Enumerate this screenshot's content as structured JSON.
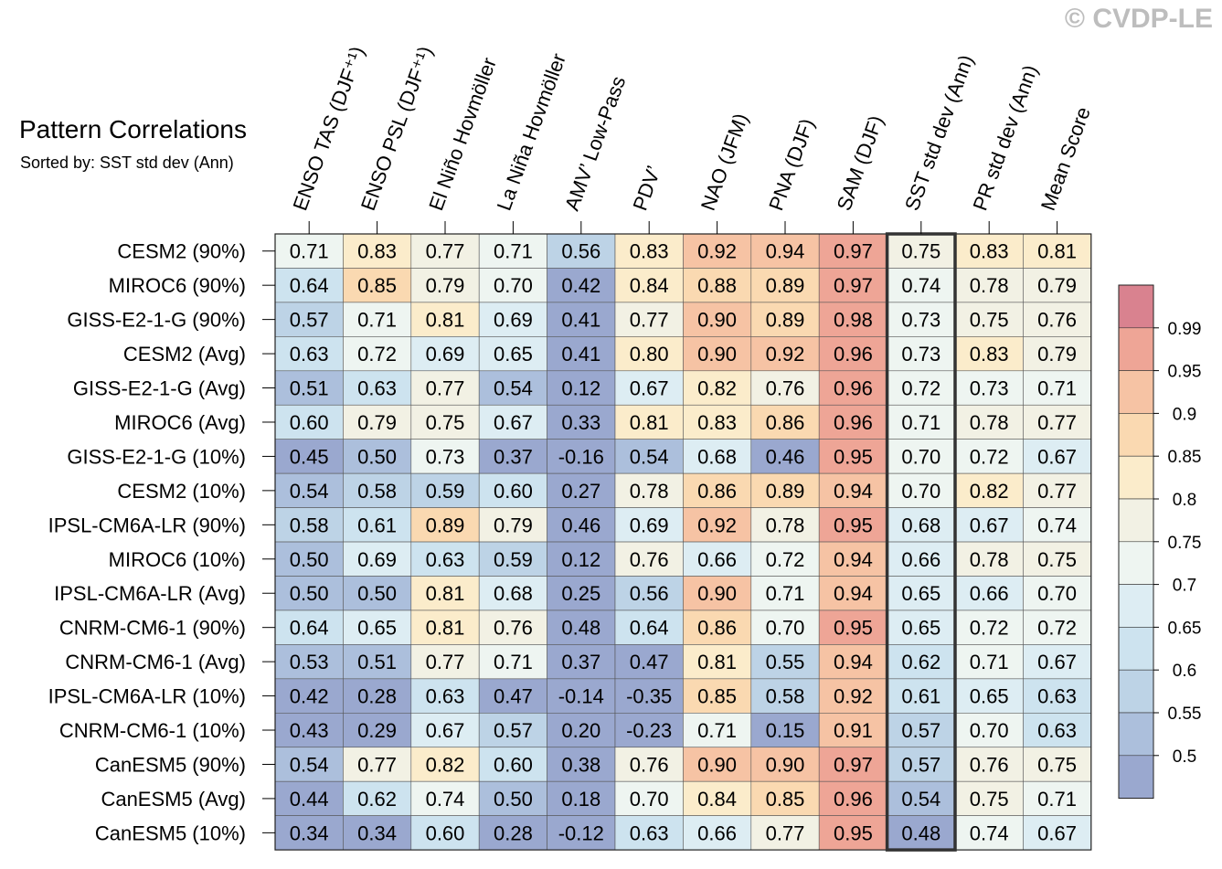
{
  "watermark": "© CVDP-LE",
  "chart_data": {
    "type": "heatmap",
    "title": "Pattern Correlations",
    "subtitle": "Sorted by: SST std dev (Ann)",
    "columns": [
      "ENSO TAS (DJF⁺¹)",
      "ENSO PSL (DJF⁺¹)",
      "El Niño Hovmöller",
      "La Niña Hovmöller",
      "AMV’ Low-Pass",
      "PDV’",
      "NAO (JFM)",
      "PNA (DJF)",
      "SAM (DJF)",
      "SST std dev (Ann)",
      "PR std dev (Ann)",
      "Mean Score"
    ],
    "rows": [
      "CESM2 (90%)",
      "MIROC6 (90%)",
      "GISS-E2-1-G (90%)",
      "CESM2 (Avg)",
      "GISS-E2-1-G (Avg)",
      "MIROC6 (Avg)",
      "GISS-E2-1-G (10%)",
      "CESM2 (10%)",
      "IPSL-CM6A-LR (90%)",
      "MIROC6 (10%)",
      "IPSL-CM6A-LR (Avg)",
      "CNRM-CM6-1 (90%)",
      "CNRM-CM6-1 (Avg)",
      "IPSL-CM6A-LR (10%)",
      "CNRM-CM6-1 (10%)",
      "CanESM5 (90%)",
      "CanESM5 (Avg)",
      "CanESM5 (10%)"
    ],
    "values": [
      [
        "0.71",
        "0.83",
        "0.77",
        "0.71",
        "0.56",
        "0.83",
        "0.92",
        "0.94",
        "0.97",
        "0.75",
        "0.83",
        "0.81"
      ],
      [
        "0.64",
        "0.85",
        "0.79",
        "0.70",
        "0.42",
        "0.84",
        "0.88",
        "0.89",
        "0.97",
        "0.74",
        "0.78",
        "0.79"
      ],
      [
        "0.57",
        "0.71",
        "0.81",
        "0.69",
        "0.41",
        "0.77",
        "0.90",
        "0.89",
        "0.98",
        "0.73",
        "0.75",
        "0.76"
      ],
      [
        "0.63",
        "0.72",
        "0.69",
        "0.65",
        "0.41",
        "0.80",
        "0.90",
        "0.92",
        "0.96",
        "0.73",
        "0.83",
        "0.79"
      ],
      [
        "0.51",
        "0.63",
        "0.77",
        "0.54",
        "0.12",
        "0.67",
        "0.82",
        "0.76",
        "0.96",
        "0.72",
        "0.73",
        "0.71"
      ],
      [
        "0.60",
        "0.79",
        "0.75",
        "0.67",
        "0.33",
        "0.81",
        "0.83",
        "0.86",
        "0.96",
        "0.71",
        "0.78",
        "0.77"
      ],
      [
        "0.45",
        "0.50",
        "0.73",
        "0.37",
        "-0.16",
        "0.54",
        "0.68",
        "0.46",
        "0.95",
        "0.70",
        "0.72",
        "0.67"
      ],
      [
        "0.54",
        "0.58",
        "0.59",
        "0.60",
        "0.27",
        "0.78",
        "0.86",
        "0.89",
        "0.94",
        "0.70",
        "0.82",
        "0.77"
      ],
      [
        "0.58",
        "0.61",
        "0.89",
        "0.79",
        "0.46",
        "0.69",
        "0.92",
        "0.78",
        "0.95",
        "0.68",
        "0.67",
        "0.74"
      ],
      [
        "0.50",
        "0.69",
        "0.63",
        "0.59",
        "0.12",
        "0.76",
        "0.66",
        "0.72",
        "0.94",
        "0.66",
        "0.78",
        "0.75"
      ],
      [
        "0.50",
        "0.50",
        "0.81",
        "0.68",
        "0.25",
        "0.56",
        "0.90",
        "0.71",
        "0.94",
        "0.65",
        "0.66",
        "0.70"
      ],
      [
        "0.64",
        "0.65",
        "0.81",
        "0.76",
        "0.48",
        "0.64",
        "0.86",
        "0.70",
        "0.95",
        "0.65",
        "0.72",
        "0.72"
      ],
      [
        "0.53",
        "0.51",
        "0.77",
        "0.71",
        "0.37",
        "0.47",
        "0.81",
        "0.55",
        "0.94",
        "0.62",
        "0.71",
        "0.67"
      ],
      [
        "0.42",
        "0.28",
        "0.63",
        "0.47",
        "-0.14",
        "-0.35",
        "0.85",
        "0.58",
        "0.92",
        "0.61",
        "0.65",
        "0.63"
      ],
      [
        "0.43",
        "0.29",
        "0.67",
        "0.57",
        "0.20",
        "-0.23",
        "0.71",
        "0.15",
        "0.91",
        "0.57",
        "0.70",
        "0.63"
      ],
      [
        "0.54",
        "0.77",
        "0.82",
        "0.60",
        "0.38",
        "0.76",
        "0.90",
        "0.90",
        "0.97",
        "0.57",
        "0.76",
        "0.75"
      ],
      [
        "0.44",
        "0.62",
        "0.74",
        "0.50",
        "0.18",
        "0.70",
        "0.84",
        "0.85",
        "0.96",
        "0.54",
        "0.75",
        "0.71"
      ],
      [
        "0.34",
        "0.34",
        "0.60",
        "0.28",
        "-0.12",
        "0.63",
        "0.66",
        "0.77",
        "0.95",
        "0.48",
        "0.74",
        "0.67"
      ]
    ],
    "highlighted_column": "SST std dev (Ann)",
    "colorbar": {
      "labels": [
        "0.99",
        "0.95",
        "0.9",
        "0.85",
        "0.8",
        "0.75",
        "0.7",
        "0.65",
        "0.6",
        "0.55",
        "0.5"
      ],
      "thresholds": [
        0.5,
        0.55,
        0.6,
        0.65,
        0.7,
        0.75,
        0.8,
        0.85,
        0.9,
        0.95,
        0.99
      ],
      "colors": [
        "#9aa8cf",
        "#acbfdc",
        "#bdd3e6",
        "#cde3ef",
        "#ddedf3",
        "#eef5f1",
        "#f2f1e4",
        "#fbeccb",
        "#fad9b1",
        "#f6c3a4",
        "#eea596",
        "#d9828f"
      ]
    }
  }
}
